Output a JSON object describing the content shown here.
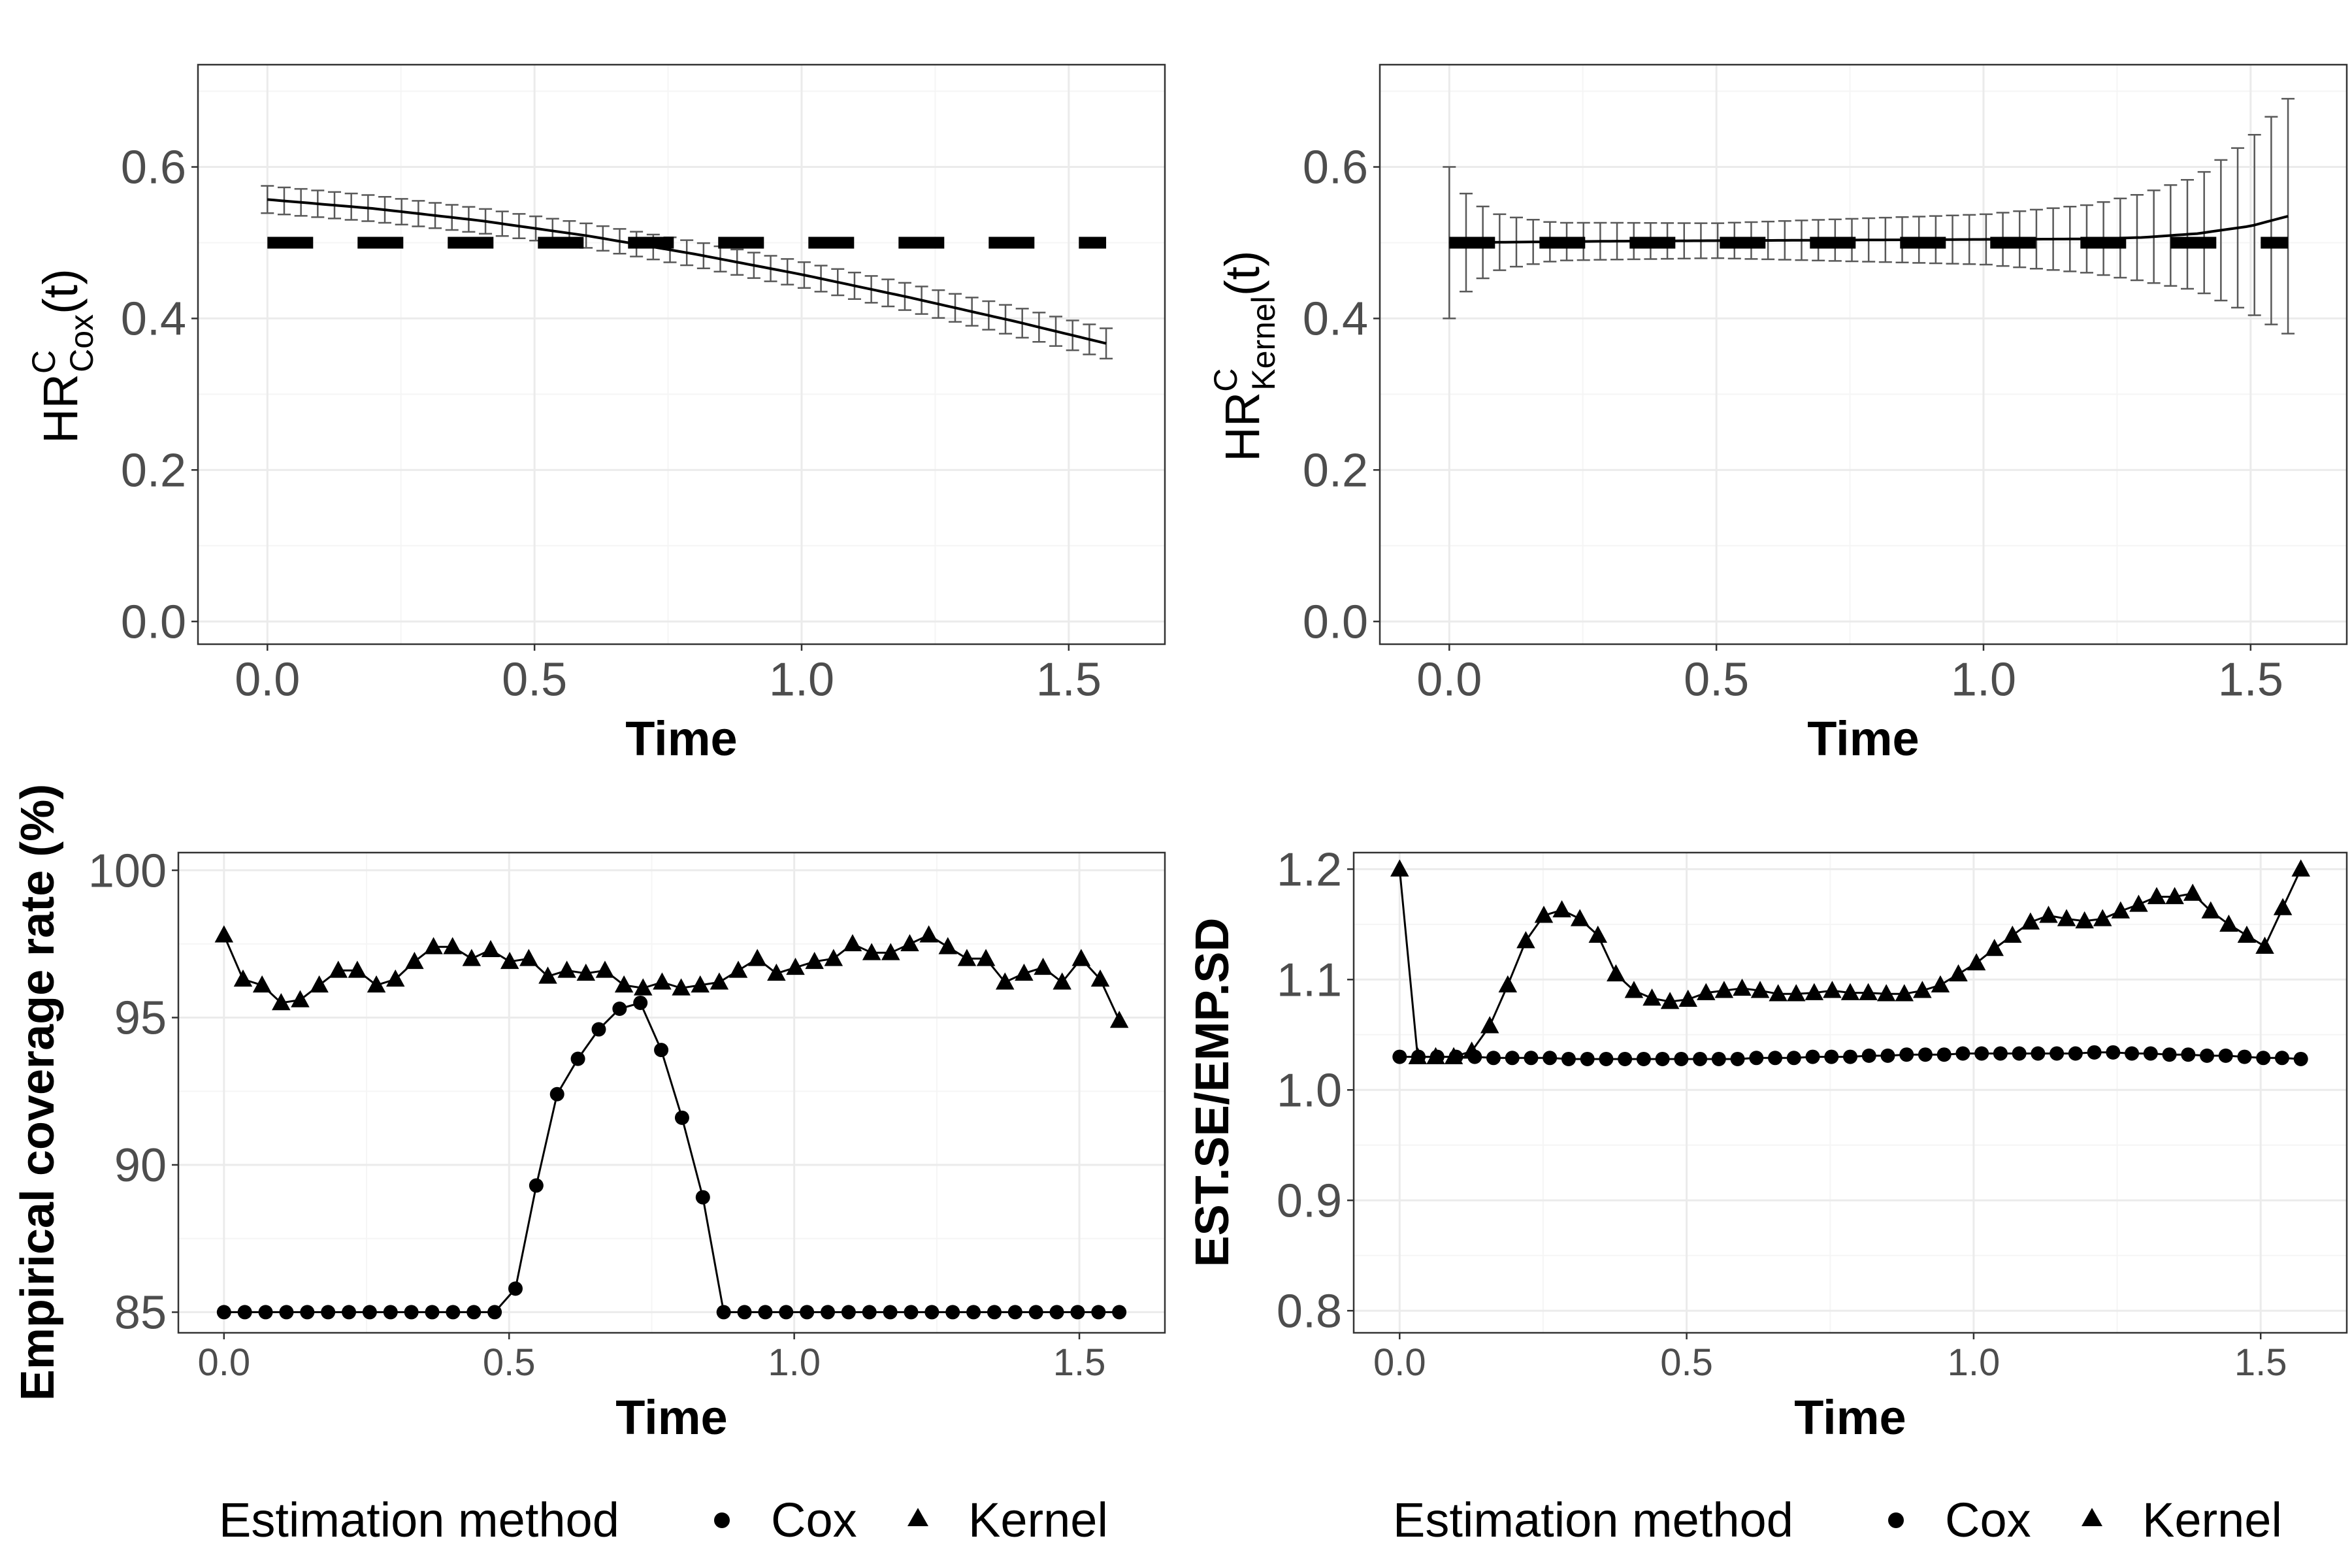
{
  "chart_data": [
    {
      "id": "hr_cox",
      "type": "line",
      "title": "",
      "xlabel": "Time",
      "ylabel_base": "HR",
      "ylabel_sup": "C",
      "ylabel_sub": "Cox",
      "ylabel_suffix": "(t)",
      "xlim": [
        -0.13,
        1.68
      ],
      "ylim": [
        -0.03,
        0.735
      ],
      "xticks": [
        "0.0",
        "0.5",
        "1.0",
        "1.5"
      ],
      "xtick_values": [
        0,
        0.5,
        1.0,
        1.5
      ],
      "yticks": [
        "0.0",
        "0.2",
        "0.4",
        "0.6"
      ],
      "ytick_values": [
        0,
        0.2,
        0.4,
        0.6
      ],
      "reference_value": 0.5,
      "estimate": {
        "x": [
          0.0,
          0.2,
          0.4,
          0.6,
          0.8,
          1.0,
          1.2,
          1.4,
          1.57
        ],
        "y": [
          0.557,
          0.545,
          0.529,
          0.509,
          0.485,
          0.458,
          0.428,
          0.396,
          0.367
        ]
      },
      "error_half_width": {
        "x": [
          0.0,
          0.5,
          1.0,
          1.57
        ],
        "y": [
          0.018,
          0.016,
          0.017,
          0.02
        ]
      }
    },
    {
      "id": "hr_kernel",
      "type": "line",
      "title": "",
      "xlabel": "Time",
      "ylabel_base": "HR",
      "ylabel_sup": "C",
      "ylabel_sub": "Kernel",
      "ylabel_suffix": "(t)",
      "xlim": [
        -0.13,
        1.68
      ],
      "ylim": [
        -0.03,
        0.735
      ],
      "xticks": [
        "0.0",
        "0.5",
        "1.0",
        "1.5"
      ],
      "xtick_values": [
        0,
        0.5,
        1.0,
        1.5
      ],
      "yticks": [
        "0.0",
        "0.2",
        "0.4",
        "0.6"
      ],
      "ytick_values": [
        0,
        0.2,
        0.4,
        0.6
      ],
      "reference_value": 0.5,
      "estimate": {
        "x": [
          0.0,
          0.3,
          0.6,
          0.9,
          1.2,
          1.3,
          1.4,
          1.5,
          1.57
        ],
        "y": [
          0.5,
          0.502,
          0.503,
          0.504,
          0.505,
          0.507,
          0.512,
          0.522,
          0.535
        ]
      },
      "error_half_width": {
        "x": [
          0.0,
          0.04,
          0.1,
          0.2,
          0.5,
          1.0,
          1.2,
          1.3,
          1.4,
          1.5,
          1.57
        ],
        "y": [
          0.1,
          0.055,
          0.035,
          0.025,
          0.023,
          0.033,
          0.045,
          0.058,
          0.075,
          0.115,
          0.155
        ]
      }
    },
    {
      "id": "coverage",
      "type": "line",
      "title": "",
      "xlabel": "Time",
      "ylabel": "Empirical coverage rate (%)",
      "xlim": [
        -0.08,
        1.65
      ],
      "ylim": [
        84.3,
        100.6
      ],
      "xticks": [
        "0.0",
        "0.5",
        "1.0",
        "1.5"
      ],
      "xtick_values": [
        0,
        0.5,
        1.0,
        1.5
      ],
      "yticks": [
        "85",
        "90",
        "95",
        "100"
      ],
      "ytick_values": [
        85,
        90,
        95,
        100
      ],
      "series": [
        {
          "name": "Cox",
          "marker": "circle",
          "values": [
            85,
            85,
            85,
            85,
            85,
            85,
            85,
            85,
            85,
            85,
            85,
            85,
            85,
            85,
            85.8,
            89.3,
            92.4,
            93.6,
            94.6,
            95.3,
            95.5,
            93.9,
            91.6,
            88.9,
            85,
            85,
            85,
            85,
            85,
            85,
            85,
            85,
            85,
            85,
            85,
            85,
            85,
            85,
            85,
            85,
            85,
            85,
            85,
            85
          ]
        },
        {
          "name": "Kernel",
          "marker": "triangle",
          "values": [
            97.8,
            96.3,
            96.1,
            95.5,
            95.6,
            96.1,
            96.6,
            96.6,
            96.1,
            96.3,
            96.9,
            97.4,
            97.4,
            97.0,
            97.3,
            96.9,
            97.0,
            96.4,
            96.6,
            96.5,
            96.6,
            96.1,
            96.0,
            96.2,
            96.0,
            96.1,
            96.2,
            96.6,
            97.0,
            96.5,
            96.7,
            96.9,
            97.0,
            97.5,
            97.2,
            97.2,
            97.5,
            97.8,
            97.4,
            97.0,
            97.0,
            96.2,
            96.5,
            96.7,
            96.2,
            97.0,
            96.3,
            94.9
          ]
        }
      ]
    },
    {
      "id": "se_ratio",
      "type": "line",
      "title": "",
      "xlabel": "Time",
      "ylabel": "EST.SE/EMP.SD",
      "xlim": [
        -0.08,
        1.65
      ],
      "ylim": [
        0.78,
        1.215
      ],
      "xticks": [
        "0.0",
        "0.5",
        "1.0",
        "1.5"
      ],
      "xtick_values": [
        0,
        0.5,
        1.0,
        1.5
      ],
      "yticks": [
        "0.8",
        "0.9",
        "1.0",
        "1.1",
        "1.2"
      ],
      "ytick_values": [
        0.8,
        0.9,
        1.0,
        1.1,
        1.2
      ],
      "series": [
        {
          "name": "Cox",
          "marker": "circle",
          "values": [
            1.03,
            1.03,
            1.03,
            1.03,
            1.03,
            1.029,
            1.029,
            1.029,
            1.029,
            1.028,
            1.028,
            1.028,
            1.028,
            1.028,
            1.028,
            1.028,
            1.028,
            1.028,
            1.028,
            1.029,
            1.029,
            1.029,
            1.03,
            1.03,
            1.03,
            1.031,
            1.031,
            1.032,
            1.032,
            1.032,
            1.033,
            1.033,
            1.033,
            1.033,
            1.033,
            1.033,
            1.033,
            1.034,
            1.034,
            1.033,
            1.033,
            1.032,
            1.032,
            1.031,
            1.031,
            1.03,
            1.029,
            1.029,
            1.028
          ]
        },
        {
          "name": "Kernel",
          "marker": "triangle",
          "values": [
            1.2,
            1.03,
            1.03,
            1.03,
            1.035,
            1.058,
            1.095,
            1.135,
            1.158,
            1.163,
            1.155,
            1.14,
            1.105,
            1.09,
            1.083,
            1.08,
            1.082,
            1.088,
            1.09,
            1.092,
            1.09,
            1.087,
            1.087,
            1.088,
            1.09,
            1.088,
            1.088,
            1.087,
            1.087,
            1.09,
            1.095,
            1.105,
            1.115,
            1.128,
            1.14,
            1.152,
            1.158,
            1.155,
            1.153,
            1.155,
            1.162,
            1.168,
            1.175,
            1.175,
            1.178,
            1.162,
            1.15,
            1.14,
            1.13,
            1.165,
            1.2
          ]
        }
      ]
    }
  ],
  "legends": [
    {
      "title": "Estimation method",
      "items": [
        {
          "label": "Cox",
          "marker": "circle"
        },
        {
          "label": "Kernel",
          "marker": "triangle"
        }
      ]
    },
    {
      "title": "Estimation method",
      "items": [
        {
          "label": "Cox",
          "marker": "circle"
        },
        {
          "label": "Kernel",
          "marker": "triangle"
        }
      ]
    }
  ],
  "colors": {
    "line": "#000000",
    "errorbar": "#595959",
    "grid_major": "#ebebeb",
    "grid_minor": "#f5f5f5",
    "panel_border": "#333333",
    "tick_text": "#4d4d4d"
  }
}
